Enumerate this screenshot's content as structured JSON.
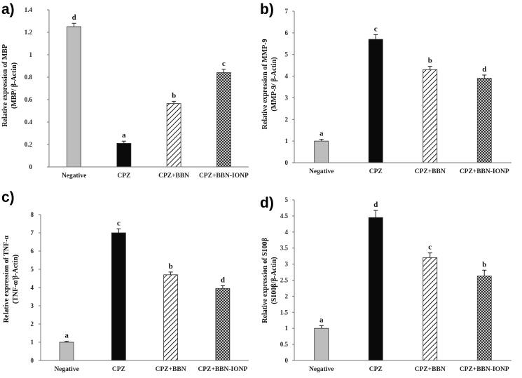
{
  "chart_data": [
    {
      "type": "bar",
      "panel": "a)",
      "ylabel_line1": "Relative expression of MBP",
      "ylabel_line2": "(MBP/ β-Actin)",
      "categories": [
        "Negative",
        "CPZ",
        "CPZ+BBN",
        "CPZ+BBN-IONP"
      ],
      "values": [
        1.25,
        0.21,
        0.565,
        0.84
      ],
      "errors": [
        0.03,
        0.02,
        0.02,
        0.03
      ],
      "letters": [
        "d",
        "a",
        "b",
        "c"
      ],
      "yticks": [
        "0",
        "0.2",
        "0.4",
        "0.6",
        "0.8",
        "1",
        "1.2",
        "1.4"
      ],
      "ylim": [
        0,
        1.4
      ]
    },
    {
      "type": "bar",
      "panel": "b)",
      "ylabel_line1": "Relative expression of MMP-9",
      "ylabel_line2": "(MMP-9/ β-Actin)",
      "categories": [
        "Negative",
        "CPZ",
        "CPZ+BBN",
        "CPZ+BBN-IONP"
      ],
      "values": [
        1.0,
        5.7,
        4.3,
        3.9
      ],
      "errors": [
        0.08,
        0.22,
        0.15,
        0.15
      ],
      "letters": [
        "a",
        "c",
        "b",
        "d"
      ],
      "yticks": [
        "0",
        "1",
        "2",
        "3",
        "4",
        "5",
        "6",
        "7"
      ],
      "ylim": [
        0,
        7
      ]
    },
    {
      "type": "bar",
      "panel": "c)",
      "ylabel_line1": "Relative expression of TNF-α",
      "ylabel_line2": "(TNF-α/β-Actin)",
      "categories": [
        "Negative",
        "CPZ",
        "CPZ+BBN",
        "CPZ+BBN-IONP"
      ],
      "values": [
        1.0,
        7.0,
        4.7,
        3.95
      ],
      "errors": [
        0.06,
        0.22,
        0.15,
        0.15
      ],
      "letters": [
        "a",
        "c",
        "b",
        "d"
      ],
      "yticks": [
        "0",
        "1",
        "2",
        "3",
        "4",
        "5",
        "6",
        "7",
        "8"
      ],
      "ylim": [
        0,
        8
      ]
    },
    {
      "type": "bar",
      "panel": "d)",
      "ylabel_line1": "Relative expression of S100β",
      "ylabel_line2": "(S100β/β-Actin)",
      "categories": [
        "Negative",
        "CPZ",
        "CPZ+BBN",
        "CPZ+BBN-IONP"
      ],
      "values": [
        1.0,
        4.45,
        3.2,
        2.63
      ],
      "errors": [
        0.08,
        0.22,
        0.15,
        0.18
      ],
      "letters": [
        "a",
        "d",
        "c",
        "b"
      ],
      "yticks": [
        "0",
        "0.5",
        "1",
        "1.5",
        "2",
        "2.5",
        "3",
        "3.5",
        "4",
        "4.5",
        "5"
      ],
      "ylim": [
        0,
        5
      ]
    }
  ],
  "colors": {
    "negative": "#bdbdbd",
    "cpz": "#0a0a0a",
    "hatch": "#222222"
  }
}
